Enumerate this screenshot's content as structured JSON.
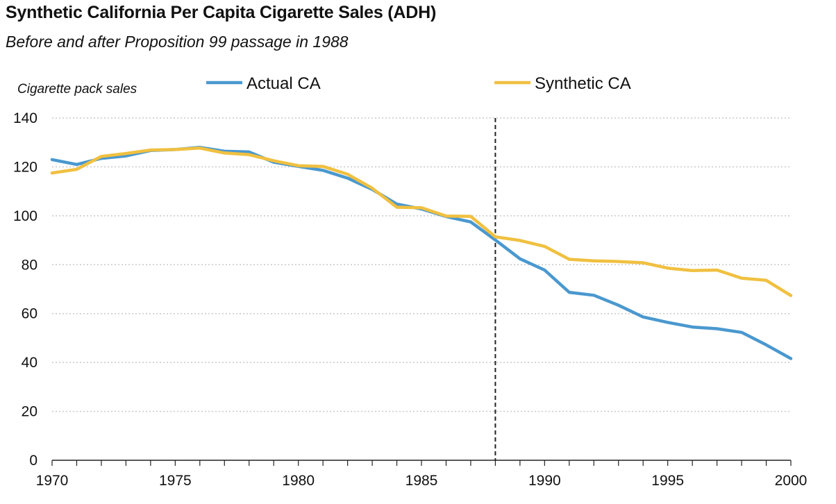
{
  "chart_data": {
    "type": "line",
    "title": "Synthetic California Per Capita Cigarette Sales (ADH)",
    "subtitle": "Before and after Proposition 99 passage in 1988",
    "ylabel": "Cigarette pack sales",
    "xlim": [
      1970,
      2000
    ],
    "ylim": [
      0,
      140
    ],
    "x_ticks": [
      1970,
      1975,
      1980,
      1985,
      1990,
      1995,
      2000
    ],
    "y_ticks": [
      0,
      20,
      40,
      60,
      80,
      100,
      120,
      140
    ],
    "grid": "horizontal dotted",
    "legend_position": "top",
    "reference_line": {
      "x": 1988,
      "style": "dashed"
    },
    "x": [
      1970,
      1971,
      1972,
      1973,
      1974,
      1975,
      1976,
      1977,
      1978,
      1979,
      1980,
      1981,
      1982,
      1983,
      1984,
      1985,
      1986,
      1987,
      1988,
      1989,
      1990,
      1991,
      1992,
      1993,
      1994,
      1995,
      1996,
      1997,
      1998,
      1999,
      2000
    ],
    "series": [
      {
        "name": "Actual CA",
        "color": "#4a98cf",
        "values": [
          123,
          121,
          123.5,
          124.5,
          126.7,
          127.1,
          128,
          126.4,
          126.1,
          121.9,
          120.2,
          118.6,
          115.4,
          110.8,
          104.8,
          102.8,
          99.7,
          97.5,
          90.1,
          82.4,
          77.8,
          68.7,
          67.5,
          63.4,
          58.6,
          56.4,
          54.5,
          53.8,
          52.3,
          47.2,
          41.6
        ]
      },
      {
        "name": "Synthetic CA",
        "color": "#f0c040",
        "values": [
          117.5,
          119,
          124.3,
          125.5,
          126.9,
          127.1,
          127.7,
          125.7,
          125,
          122.5,
          120.5,
          120.2,
          117,
          111.3,
          103.5,
          103.3,
          99.9,
          99.8,
          91.4,
          89.9,
          87.5,
          82.2,
          81.6,
          81.3,
          80.8,
          78.6,
          77.6,
          77.8,
          74.5,
          73.6,
          67.4
        ]
      }
    ]
  }
}
